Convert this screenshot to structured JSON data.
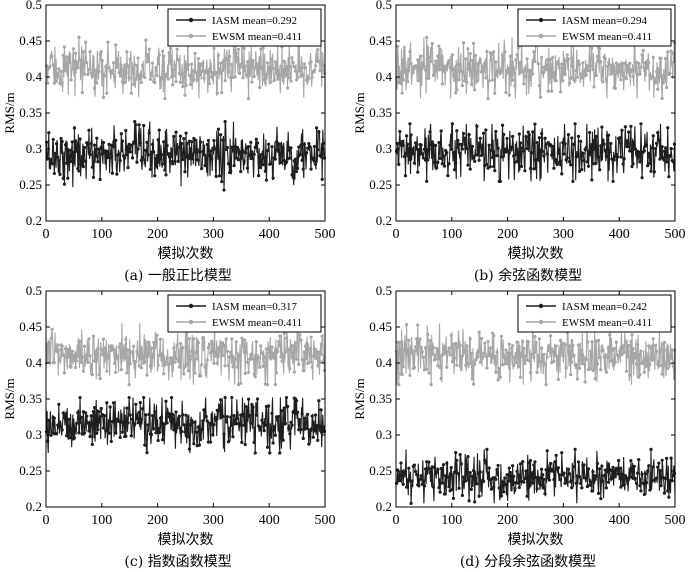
{
  "chart_data": [
    {
      "type": "line",
      "caption": "(a) 一般正比模型",
      "xlabel": "模拟次数",
      "ylabel": "RMS/m",
      "xlim": [
        0,
        500
      ],
      "ylim": [
        0.2,
        0.5
      ],
      "xticks": [
        0,
        100,
        200,
        300,
        400,
        500
      ],
      "yticks": [
        0.2,
        0.25,
        0.3,
        0.35,
        0.4,
        0.45,
        0.5
      ],
      "ytick_labels": [
        "0.2",
        "0.25",
        "0.3",
        "0.35",
        "0.4",
        "0.45",
        "0.5"
      ],
      "grid": false,
      "legend_position": "top-right",
      "series": [
        {
          "name": "IASM mean=0.292",
          "color": "#1e1e1e",
          "mean": 0.292,
          "spread": 0.018,
          "min": 0.243,
          "max": 0.338,
          "points": 500
        },
        {
          "name": "EWSM mean=0.411",
          "color": "#a6a6a6",
          "mean": 0.411,
          "spread": 0.017,
          "min": 0.37,
          "max": 0.455,
          "points": 500
        }
      ]
    },
    {
      "type": "line",
      "caption": "(b) 余弦函数模型",
      "xlabel": "模拟次数",
      "ylabel": "RMS/m",
      "xlim": [
        0,
        500
      ],
      "ylim": [
        0.2,
        0.5
      ],
      "xticks": [
        0,
        100,
        200,
        300,
        400,
        500
      ],
      "yticks": [
        0.2,
        0.25,
        0.3,
        0.35,
        0.4,
        0.45,
        0.5
      ],
      "ytick_labels": [
        "0.2",
        "0.25",
        "0.3",
        "0.35",
        "0.4",
        "0.45",
        "0.5"
      ],
      "grid": false,
      "legend_position": "top-right",
      "series": [
        {
          "name": "IASM mean=0.294",
          "color": "#1e1e1e",
          "mean": 0.294,
          "spread": 0.018,
          "min": 0.255,
          "max": 0.335,
          "points": 500
        },
        {
          "name": "EWSM mean=0.411",
          "color": "#a6a6a6",
          "mean": 0.411,
          "spread": 0.017,
          "min": 0.37,
          "max": 0.455,
          "points": 500
        }
      ]
    },
    {
      "type": "line",
      "caption": "(c) 指数函数模型",
      "xlabel": "模拟次数",
      "ylabel": "RMS/m",
      "xlim": [
        0,
        500
      ],
      "ylim": [
        0.2,
        0.5
      ],
      "xticks": [
        0,
        100,
        200,
        300,
        400,
        500
      ],
      "yticks": [
        0.2,
        0.25,
        0.3,
        0.35,
        0.4,
        0.45,
        0.5
      ],
      "ytick_labels": [
        "0.2",
        "0.25",
        "0.3",
        "0.35",
        "0.4",
        "0.45",
        "0.5"
      ],
      "grid": false,
      "legend_position": "top-right",
      "series": [
        {
          "name": "IASM mean=0.317",
          "color": "#1e1e1e",
          "mean": 0.317,
          "spread": 0.017,
          "min": 0.275,
          "max": 0.352,
          "points": 500
        },
        {
          "name": "EWSM mean=0.411",
          "color": "#a6a6a6",
          "mean": 0.411,
          "spread": 0.017,
          "min": 0.37,
          "max": 0.455,
          "points": 500
        }
      ]
    },
    {
      "type": "line",
      "caption": "(d) 分段余弦函数模型",
      "xlabel": "模拟次数",
      "ylabel": "RMS/m",
      "xlim": [
        0,
        500
      ],
      "ylim": [
        0.2,
        0.5
      ],
      "xticks": [
        0,
        100,
        200,
        300,
        400,
        500
      ],
      "yticks": [
        0.2,
        0.25,
        0.3,
        0.35,
        0.4,
        0.45,
        0.5
      ],
      "ytick_labels": [
        "0.2",
        "0.25",
        "0.3",
        "0.35",
        "0.4",
        "0.45",
        "0.5"
      ],
      "grid": false,
      "legend_position": "top-right",
      "series": [
        {
          "name": "IASM mean=0.242",
          "color": "#1e1e1e",
          "mean": 0.242,
          "spread": 0.016,
          "min": 0.205,
          "max": 0.28,
          "points": 500
        },
        {
          "name": "EWSM mean=0.411",
          "color": "#a6a6a6",
          "mean": 0.411,
          "spread": 0.017,
          "min": 0.37,
          "max": 0.455,
          "points": 500
        }
      ]
    }
  ]
}
